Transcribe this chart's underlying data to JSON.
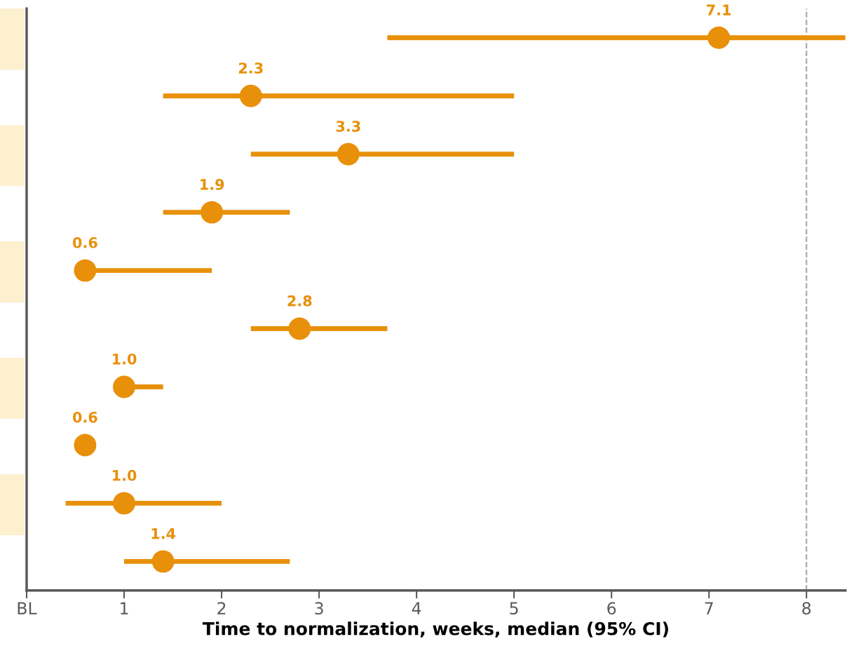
{
  "chart_data": {
    "type": "scatter",
    "orientation": "horizontal",
    "xlabel": "Time to normalization, weeks, median (95% CI)",
    "categories": [
      null,
      null,
      null,
      null,
      null,
      null,
      null,
      null,
      null,
      null
    ],
    "series": [
      {
        "color": "#e8900a",
        "values": [
          7.1,
          2.3,
          3.3,
          1.9,
          0.6,
          2.8,
          1.0,
          0.6,
          1.0,
          1.4
        ],
        "errors": [
          [
            3.7,
            8.4
          ],
          [
            1.4,
            5.0
          ],
          [
            2.3,
            5.0
          ],
          [
            1.4,
            2.7
          ],
          [
            0.6,
            1.9
          ],
          [
            2.3,
            3.7
          ],
          [
            1.0,
            1.4
          ],
          null,
          [
            0.4,
            2.0
          ],
          [
            1.0,
            2.7
          ]
        ]
      }
    ],
    "value_labels": [
      "7.1",
      "2.3",
      "3.3",
      "1.9",
      "0.6",
      "2.8",
      "1.0",
      "0.6",
      "1.0",
      "1.4"
    ],
    "xlim": [
      0,
      8.4
    ],
    "xticks": [
      {
        "value": 0,
        "label": "BL"
      },
      1,
      2,
      3,
      4,
      5,
      6,
      7,
      8
    ],
    "tick_labels": "x",
    "ref_lines": [
      {
        "axis": "x",
        "value": 8,
        "color": "#a6a6a6",
        "line_style": "dashed"
      }
    ],
    "marker": "circle",
    "grid": false,
    "legend": false
  }
}
